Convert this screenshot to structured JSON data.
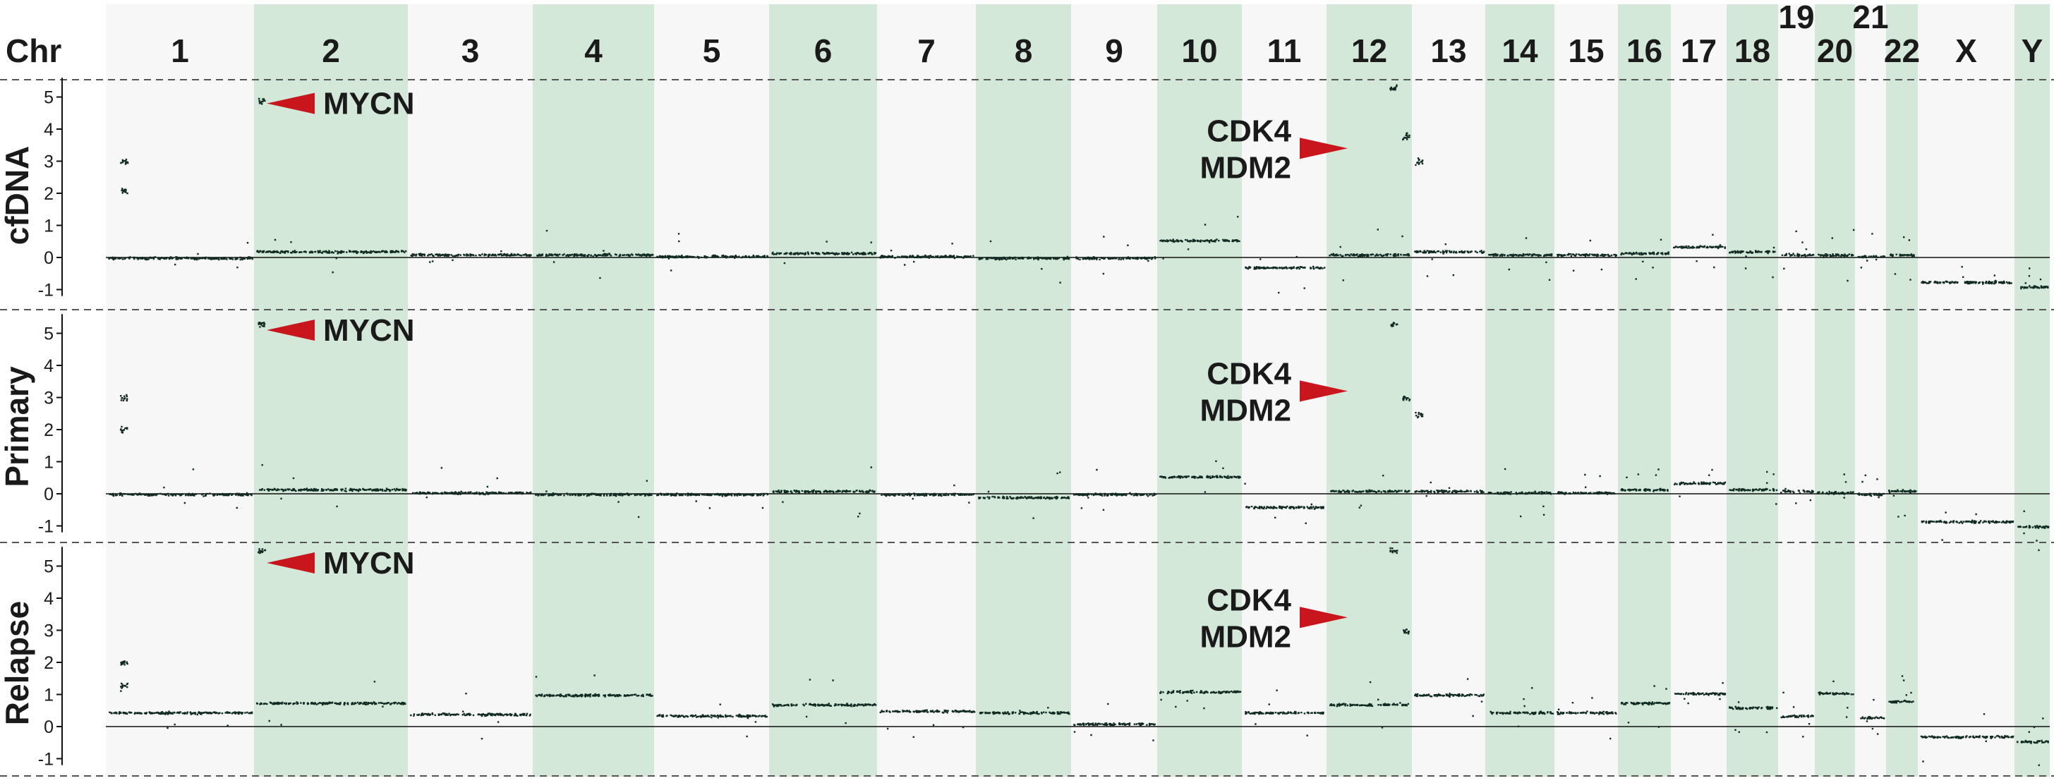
{
  "chart_data": {
    "type": "scatter",
    "header_label": "Chr",
    "chromosomes": [
      {
        "name": "1",
        "shaded": false,
        "sample": {
          "cfDNA": 0.0,
          "Primary": 0.0,
          "Relapse": 0.45
        }
      },
      {
        "name": "2",
        "shaded": true,
        "sample": {
          "cfDNA": 0.2,
          "Primary": 0.15,
          "Relapse": 0.75
        }
      },
      {
        "name": "3",
        "shaded": false,
        "sample": {
          "cfDNA": 0.1,
          "Primary": 0.05,
          "Relapse": 0.4
        }
      },
      {
        "name": "4",
        "shaded": true,
        "sample": {
          "cfDNA": 0.1,
          "Primary": 0.0,
          "Relapse": 1.0
        }
      },
      {
        "name": "5",
        "shaded": false,
        "sample": {
          "cfDNA": 0.05,
          "Primary": 0.0,
          "Relapse": 0.35
        }
      },
      {
        "name": "6",
        "shaded": true,
        "sample": {
          "cfDNA": 0.15,
          "Primary": 0.1,
          "Relapse": 0.7
        }
      },
      {
        "name": "7",
        "shaded": false,
        "sample": {
          "cfDNA": 0.05,
          "Primary": 0.0,
          "Relapse": 0.5
        }
      },
      {
        "name": "8",
        "shaded": true,
        "sample": {
          "cfDNA": 0.0,
          "Primary": -0.1,
          "Relapse": 0.45
        }
      },
      {
        "name": "9",
        "shaded": false,
        "sample": {
          "cfDNA": 0.0,
          "Primary": 0.0,
          "Relapse": 0.1
        }
      },
      {
        "name": "10",
        "shaded": true,
        "sample": {
          "cfDNA": 0.55,
          "Primary": 0.55,
          "Relapse": 1.1
        }
      },
      {
        "name": "11",
        "shaded": false,
        "sample": {
          "cfDNA": -0.3,
          "Primary": -0.4,
          "Relapse": 0.45
        }
      },
      {
        "name": "12",
        "shaded": true,
        "sample": {
          "cfDNA": 0.1,
          "Primary": 0.1,
          "Relapse": 0.7
        }
      },
      {
        "name": "13",
        "shaded": false,
        "sample": {
          "cfDNA": 0.2,
          "Primary": 0.1,
          "Relapse": 1.0
        }
      },
      {
        "name": "14",
        "shaded": true,
        "sample": {
          "cfDNA": 0.1,
          "Primary": 0.05,
          "Relapse": 0.45
        }
      },
      {
        "name": "15",
        "shaded": false,
        "sample": {
          "cfDNA": 0.1,
          "Primary": 0.05,
          "Relapse": 0.45
        }
      },
      {
        "name": "16",
        "shaded": true,
        "sample": {
          "cfDNA": 0.15,
          "Primary": 0.15,
          "Relapse": 0.75
        }
      },
      {
        "name": "17",
        "shaded": false,
        "sample": {
          "cfDNA": 0.35,
          "Primary": 0.35,
          "Relapse": 1.05
        }
      },
      {
        "name": "18",
        "shaded": true,
        "sample": {
          "cfDNA": 0.2,
          "Primary": 0.15,
          "Relapse": 0.6
        }
      },
      {
        "name": "19",
        "shaded": false,
        "sample": {
          "cfDNA": 0.1,
          "Primary": 0.1,
          "Relapse": 0.35
        }
      },
      {
        "name": "20",
        "shaded": true,
        "sample": {
          "cfDNA": 0.1,
          "Primary": 0.05,
          "Relapse": 1.05
        }
      },
      {
        "name": "21",
        "shaded": false,
        "sample": {
          "cfDNA": 0.05,
          "Primary": 0.0,
          "Relapse": 0.3
        }
      },
      {
        "name": "22",
        "shaded": true,
        "sample": {
          "cfDNA": 0.1,
          "Primary": 0.1,
          "Relapse": 0.8
        }
      },
      {
        "name": "X",
        "shaded": false,
        "sample": {
          "cfDNA": -0.75,
          "Primary": -0.85,
          "Relapse": -0.3
        }
      },
      {
        "name": "Y",
        "shaded": true,
        "sample": {
          "cfDNA": -0.9,
          "Primary": -1.0,
          "Relapse": -0.45
        }
      }
    ],
    "samples": [
      "cfDNA",
      "Primary",
      "Relapse"
    ],
    "y_ticks": [
      5,
      4,
      3,
      2,
      1,
      0,
      -1
    ],
    "ylim": [
      -1.2,
      5.6
    ],
    "annotations": [
      {
        "sample": "cfDNA",
        "chr": "2",
        "text": "MYCN",
        "value": 4.8
      },
      {
        "sample": "cfDNA",
        "chr": "12",
        "lines": [
          "CDK4",
          "MDM2"
        ],
        "value": 3.4
      },
      {
        "sample": "Primary",
        "chr": "2",
        "text": "MYCN",
        "value": 5.1
      },
      {
        "sample": "Primary",
        "chr": "12",
        "lines": [
          "CDK4",
          "MDM2"
        ],
        "value": 3.2
      },
      {
        "sample": "Relapse",
        "chr": "2",
        "text": "MYCN",
        "value": 5.1
      },
      {
        "sample": "Relapse",
        "chr": "12",
        "lines": [
          "CDK4",
          "MDM2"
        ],
        "value": 3.4
      }
    ],
    "focal": {
      "cfDNA": [
        {
          "chr": "1",
          "level": 3.0
        },
        {
          "chr": "1",
          "level": 2.1
        },
        {
          "chr": "2",
          "level": 4.9
        },
        {
          "chr": "12",
          "level": 5.3
        },
        {
          "chr": "12",
          "level": 3.8
        },
        {
          "chr": "12",
          "level": 3.0
        }
      ],
      "Primary": [
        {
          "chr": "1",
          "level": 3.0
        },
        {
          "chr": "1",
          "level": 2.0
        },
        {
          "chr": "2",
          "level": 5.3
        },
        {
          "chr": "12",
          "level": 5.3
        },
        {
          "chr": "12",
          "level": 3.0
        },
        {
          "chr": "12",
          "level": 2.5
        }
      ],
      "Relapse": [
        {
          "chr": "1",
          "level": 2.0
        },
        {
          "chr": "1",
          "level": 1.3
        },
        {
          "chr": "2",
          "level": 5.5
        },
        {
          "chr": "12",
          "level": 5.5
        },
        {
          "chr": "12",
          "level": 3.0
        }
      ]
    },
    "colors": {
      "shade": "#d3e8d8",
      "light": "#f7f7f7",
      "points": "#0f2a22",
      "arrow": "#c8161c"
    },
    "grid": false
  }
}
